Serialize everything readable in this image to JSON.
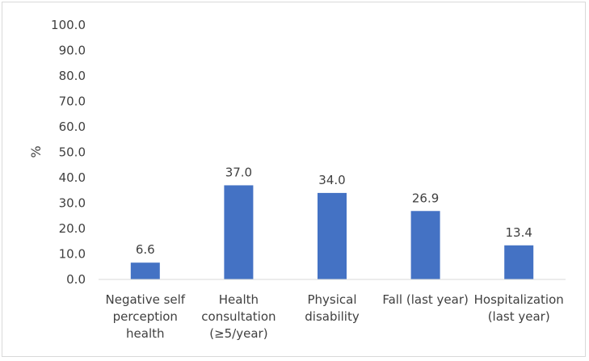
{
  "chart_data": {
    "type": "bar",
    "title": "",
    "xlabel": "",
    "ylabel": "%",
    "ylim": [
      0,
      100
    ],
    "yticks": [
      "0.0",
      "10.0",
      "20.0",
      "30.0",
      "40.0",
      "50.0",
      "60.0",
      "70.0",
      "80.0",
      "90.0",
      "100.0"
    ],
    "categories": [
      [
        "Negative self",
        "perception",
        "health"
      ],
      [
        "Health",
        "consultation",
        "(≥5/year)"
      ],
      [
        "Physical",
        "disability"
      ],
      [
        "Fall (last year)"
      ],
      [
        "Hospitalization",
        "(last year)"
      ]
    ],
    "values": [
      6.6,
      37.0,
      34.0,
      26.9,
      13.4
    ],
    "data_labels": [
      "6.6",
      "37.0",
      "34.0",
      "26.9",
      "13.4"
    ],
    "grid": false,
    "legend": "none",
    "bar_color": "#4472c4"
  }
}
